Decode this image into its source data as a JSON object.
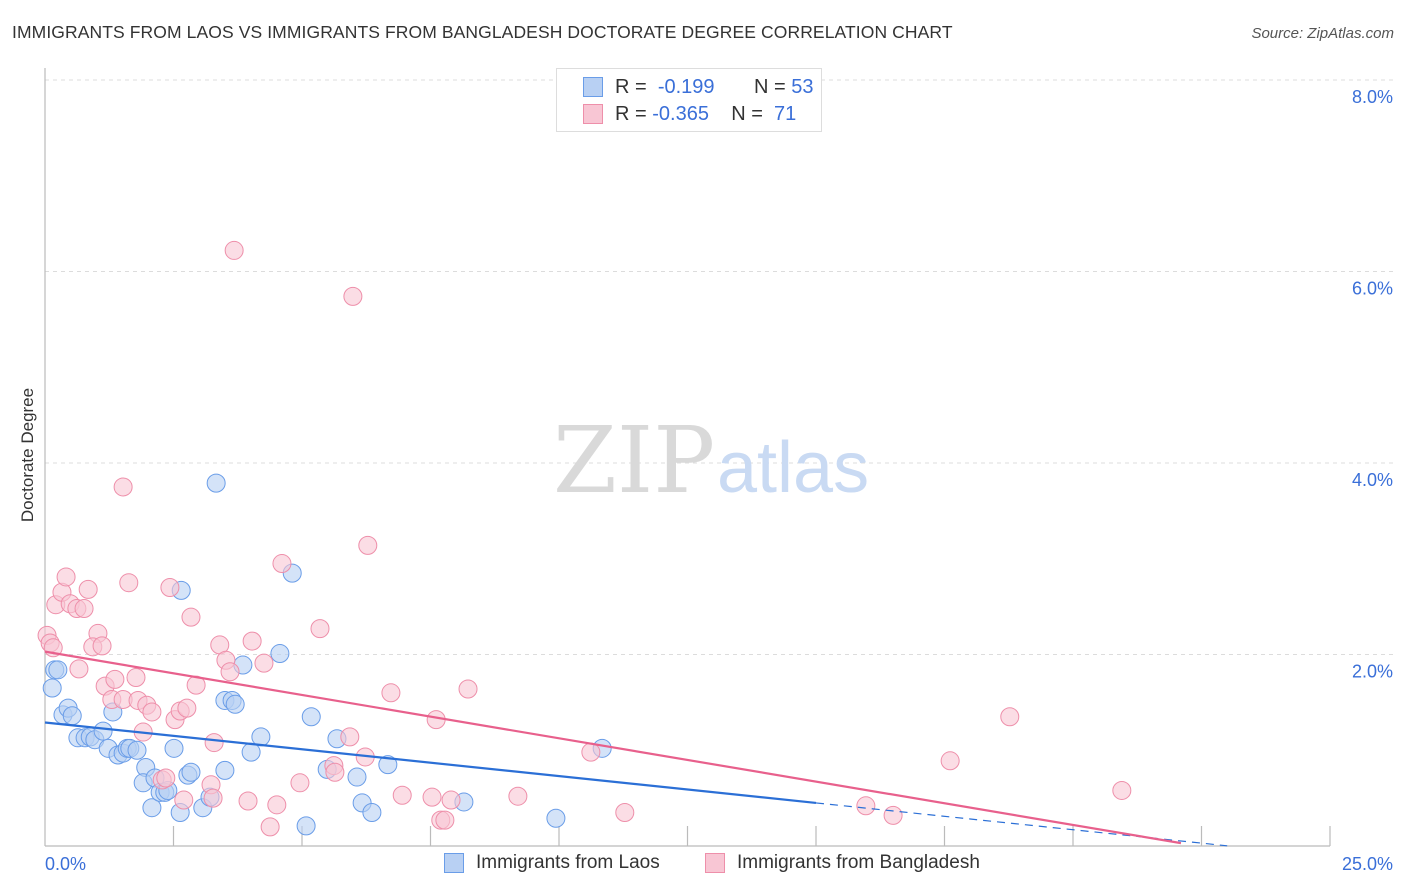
{
  "chart_data": {
    "type": "scatter",
    "title": "IMMIGRANTS FROM LAOS VS IMMIGRANTS FROM BANGLADESH DOCTORATE DEGREE CORRELATION CHART",
    "source": "Source: ZipAtlas.com",
    "xlabel": "",
    "ylabel": "Doctorate Degree",
    "xlim": [
      0,
      25
    ],
    "ylim": [
      0,
      8
    ],
    "x_tick_labels": [
      "0.0%",
      "25.0%"
    ],
    "y_ticks": [
      2,
      4,
      6,
      8
    ],
    "y_tick_labels": [
      "2.0%",
      "4.0%",
      "6.0%",
      "8.0%"
    ],
    "grid": true,
    "legend_position": "bottom",
    "watermark": "ZIPatlas",
    "stats": [
      {
        "r_label": "R =",
        "r": "-0.199",
        "n_label": "N =",
        "n": "53"
      },
      {
        "r_label": "R =",
        "r": "-0.365",
        "n_label": "N =",
        "n": "71"
      }
    ],
    "series": [
      {
        "name": "Immigrants from Laos",
        "color": "#6a9de8",
        "fill": "#b8d0f3",
        "line_color": "#2b6fd6",
        "trend": {
          "intercept": 1.29,
          "slope": -0.056,
          "solid_until": 15,
          "dashed_until": 23
        },
        "points": [
          [
            0.14,
            1.65
          ],
          [
            0.19,
            1.84
          ],
          [
            0.25,
            1.84
          ],
          [
            0.35,
            1.37
          ],
          [
            0.45,
            1.44
          ],
          [
            0.53,
            1.36
          ],
          [
            0.64,
            1.13
          ],
          [
            0.78,
            1.13
          ],
          [
            0.88,
            1.14
          ],
          [
            0.97,
            1.11
          ],
          [
            1.13,
            1.2
          ],
          [
            1.23,
            1.02
          ],
          [
            1.32,
            1.4
          ],
          [
            1.42,
            0.95
          ],
          [
            1.52,
            0.97
          ],
          [
            1.6,
            1.02
          ],
          [
            1.65,
            1.02
          ],
          [
            1.79,
            1.0
          ],
          [
            1.96,
            0.82
          ],
          [
            1.91,
            0.66
          ],
          [
            2.08,
            0.4
          ],
          [
            2.14,
            0.71
          ],
          [
            2.24,
            0.56
          ],
          [
            2.33,
            0.56
          ],
          [
            2.39,
            0.58
          ],
          [
            2.51,
            1.02
          ],
          [
            2.63,
            0.35
          ],
          [
            2.65,
            2.67
          ],
          [
            2.78,
            0.74
          ],
          [
            2.84,
            0.77
          ],
          [
            3.07,
            0.4
          ],
          [
            3.21,
            0.51
          ],
          [
            3.33,
            3.79
          ],
          [
            3.5,
            0.79
          ],
          [
            3.5,
            1.52
          ],
          [
            3.64,
            1.52
          ],
          [
            3.7,
            1.48
          ],
          [
            3.85,
            1.89
          ],
          [
            4.01,
            0.98
          ],
          [
            4.2,
            1.14
          ],
          [
            4.57,
            2.01
          ],
          [
            4.81,
            2.85
          ],
          [
            5.08,
            0.21
          ],
          [
            5.18,
            1.35
          ],
          [
            5.49,
            0.8
          ],
          [
            5.68,
            1.12
          ],
          [
            6.07,
            0.72
          ],
          [
            6.17,
            0.45
          ],
          [
            6.36,
            0.35
          ],
          [
            6.67,
            0.85
          ],
          [
            8.15,
            0.46
          ],
          [
            9.94,
            0.29
          ],
          [
            10.84,
            1.02
          ]
        ]
      },
      {
        "name": "Immigrants from Bangladesh",
        "color": "#ee8faa",
        "fill": "#f8c6d4",
        "line_color": "#e8608c",
        "trend": {
          "intercept": 2.03,
          "slope": -0.0905,
          "solid_until": 22.1,
          "dashed_until": 22.1
        },
        "points": [
          [
            0.04,
            2.2
          ],
          [
            0.1,
            2.12
          ],
          [
            0.16,
            2.07
          ],
          [
            0.21,
            2.52
          ],
          [
            0.33,
            2.65
          ],
          [
            0.41,
            2.81
          ],
          [
            0.49,
            2.53
          ],
          [
            0.62,
            2.48
          ],
          [
            0.76,
            2.48
          ],
          [
            0.84,
            2.68
          ],
          [
            0.66,
            1.85
          ],
          [
            1.03,
            2.22
          ],
          [
            0.93,
            2.08
          ],
          [
            1.11,
            2.09
          ],
          [
            1.17,
            1.67
          ],
          [
            1.36,
            1.74
          ],
          [
            1.3,
            1.53
          ],
          [
            1.52,
            1.53
          ],
          [
            1.52,
            3.75
          ],
          [
            1.63,
            2.75
          ],
          [
            1.77,
            1.76
          ],
          [
            1.81,
            1.52
          ],
          [
            1.91,
            1.19
          ],
          [
            1.98,
            1.47
          ],
          [
            2.08,
            1.4
          ],
          [
            2.28,
            0.69
          ],
          [
            2.35,
            0.71
          ],
          [
            2.43,
            2.7
          ],
          [
            2.53,
            1.32
          ],
          [
            2.63,
            1.41
          ],
          [
            2.7,
            0.48
          ],
          [
            2.76,
            1.44
          ],
          [
            2.84,
            2.39
          ],
          [
            2.94,
            1.68
          ],
          [
            3.23,
            0.64
          ],
          [
            3.27,
            0.5
          ],
          [
            3.29,
            1.08
          ],
          [
            3.4,
            2.1
          ],
          [
            3.52,
            1.94
          ],
          [
            3.6,
            1.82
          ],
          [
            3.68,
            6.22
          ],
          [
            3.95,
            0.47
          ],
          [
            4.03,
            2.14
          ],
          [
            4.26,
            1.91
          ],
          [
            4.38,
            0.2
          ],
          [
            4.51,
            0.43
          ],
          [
            4.61,
            2.95
          ],
          [
            4.96,
            0.66
          ],
          [
            5.35,
            2.27
          ],
          [
            5.62,
            0.84
          ],
          [
            5.64,
            0.77
          ],
          [
            5.93,
            1.14
          ],
          [
            5.99,
            5.74
          ],
          [
            6.23,
            0.93
          ],
          [
            6.28,
            3.14
          ],
          [
            6.73,
            1.6
          ],
          [
            6.95,
            0.53
          ],
          [
            7.53,
            0.51
          ],
          [
            7.61,
            1.32
          ],
          [
            7.7,
            0.27
          ],
          [
            7.78,
            0.27
          ],
          [
            7.9,
            0.48
          ],
          [
            8.23,
            1.64
          ],
          [
            9.2,
            0.52
          ],
          [
            10.62,
            0.98
          ],
          [
            11.28,
            0.35
          ],
          [
            15.97,
            0.42
          ],
          [
            16.5,
            0.32
          ],
          [
            17.61,
            0.89
          ],
          [
            18.77,
            1.35
          ],
          [
            20.95,
            0.58
          ]
        ]
      }
    ]
  }
}
